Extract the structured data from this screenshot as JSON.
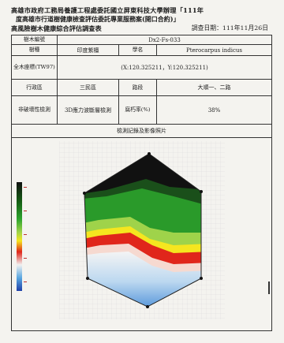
{
  "header": {
    "line1": "高雄市政府工務局養護工程處委託國立屏東科技大學辦理「111年",
    "line2": "度高雄市行道樹健康檢查評估委託專業服務案(開口合約)」",
    "line3": "高風險樹木健康綜合評估調查表",
    "date": "調查日期：111年11月26日"
  },
  "table": {
    "tree_id_label": "樹木編號",
    "tree_id_value": "Dx2-Fs-033",
    "species_label": "樹種",
    "species_value": "印度紫檀",
    "sci_name_label": "學名",
    "sci_name_value": "Pterocarpus indicus",
    "coord_label": "全木座標(TW97)",
    "coord_value": "(X:120.325211，Y:120.325211)",
    "district_label": "行政區",
    "district_value": "三民區",
    "road_label": "路段",
    "road_value": "大順一、二路",
    "method_label": "非破壞性檢測",
    "method_value": "3D應力波斷層檢測",
    "decay_label": "腐朽率(%)",
    "decay_value": "38%",
    "image_title": "檢測記錄及影像照片"
  },
  "colors": {
    "dark": "#111111",
    "green": "#2ea52e",
    "yellow": "#f5e61f",
    "red": "#e0261b",
    "blue": "#4a8fd8"
  }
}
